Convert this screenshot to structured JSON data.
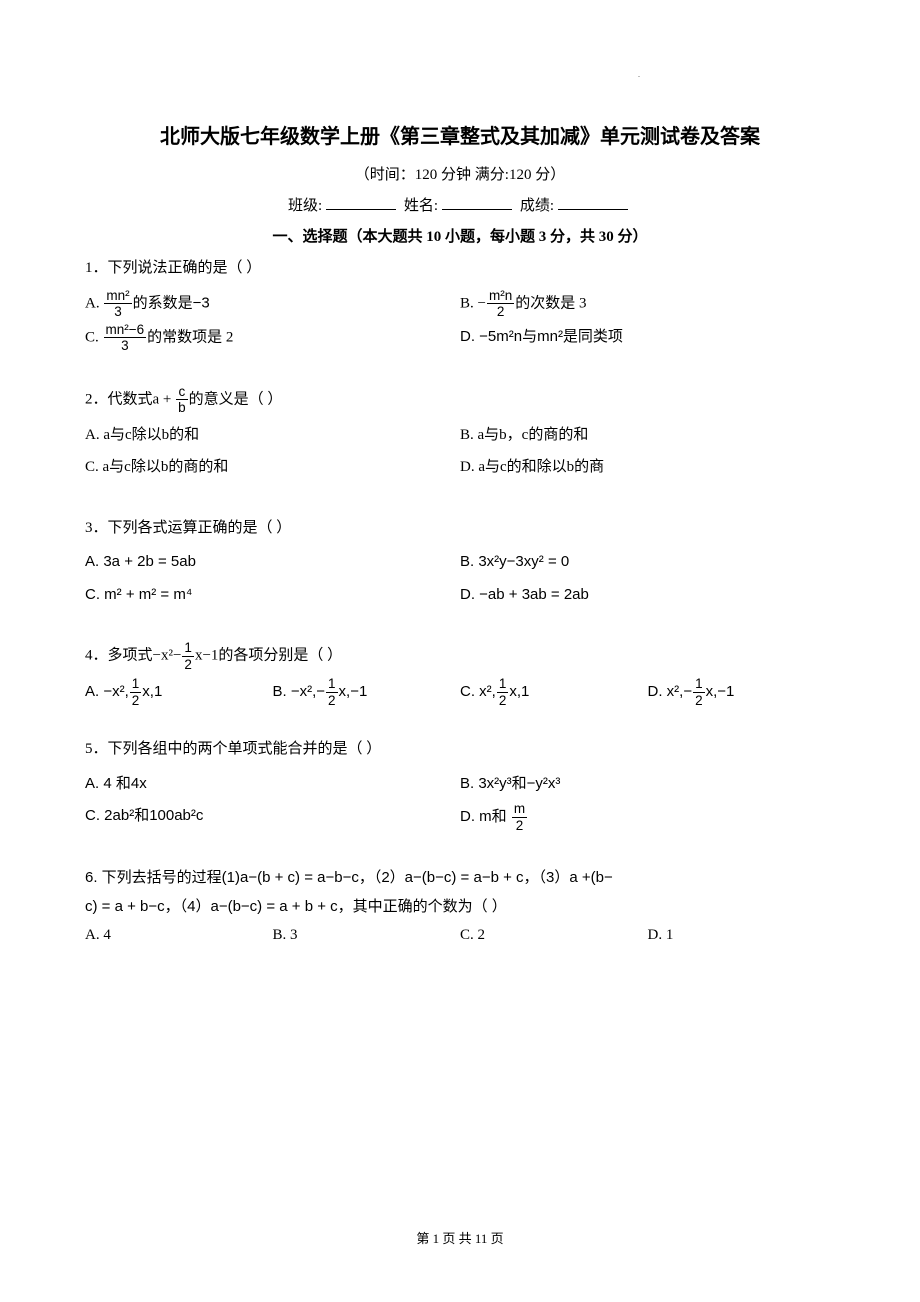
{
  "title": "北师大版七年级数学上册《第三章整式及其加减》单元测试卷及答案",
  "subtitle": "（时间：120 分钟  满分:120 分）",
  "info_labels": {
    "class": "班级:",
    "name": "姓名:",
    "score": "成绩:"
  },
  "section_title": "一、选择题（本大题共 10 小题，每小题 3 分，共 30 分）",
  "questions": {
    "q1": {
      "stem": "1．下列说法正确的是（    ）",
      "a_prefix": "A. ",
      "a_frac_num": "mn²",
      "a_frac_den": "3",
      "a_suffix": "的系数是−3",
      "b_prefix": "B. −",
      "b_frac_num": "m²n",
      "b_frac_den": "2",
      "b_suffix": "的次数是 3",
      "c_prefix": "C. ",
      "c_frac_num": "mn²−6",
      "c_frac_den": "3",
      "c_suffix": "的常数项是 2",
      "d": "D. −5m²n与mn²是同类项"
    },
    "q2": {
      "stem_prefix": "2．代数式a + ",
      "stem_frac_num": "c",
      "stem_frac_den": "b",
      "stem_suffix": "的意义是（    ）",
      "a": "A. a与c除以b的和",
      "b": "B. a与b，c的商的和",
      "c": "C. a与c除以b的商的和",
      "d": "D. a与c的和除以b的商"
    },
    "q3": {
      "stem": "3．下列各式运算正确的是（    ）",
      "a": "A. 3a + 2b = 5ab",
      "b": "B. 3x²y−3xy² = 0",
      "c": "C. m² + m² = m⁴",
      "d": "D. −ab + 3ab = 2ab"
    },
    "q4": {
      "stem_prefix": "4．多项式−x²−",
      "stem_frac_num": "1",
      "stem_frac_den": "2",
      "stem_suffix": "x−1的各项分别是（    ）",
      "a_prefix": "A. −x²,",
      "a_frac_num": "1",
      "a_frac_den": "2",
      "a_suffix": "x,1",
      "b_prefix": "B. −x²,−",
      "b_frac_num": "1",
      "b_frac_den": "2",
      "b_suffix": "x,−1",
      "c_prefix": "C. x²,",
      "c_frac_num": "1",
      "c_frac_den": "2",
      "c_suffix": "x,1",
      "d_prefix": "D. x²,−",
      "d_frac_num": "1",
      "d_frac_den": "2",
      "d_suffix": "x,−1"
    },
    "q5": {
      "stem": "5．下列各组中的两个单项式能合并的是（    ）",
      "a": "A. 4 和4x",
      "b": "B. 3x²y³和−y²x³",
      "c": "C. 2ab²和100ab²c",
      "d_prefix": "D. m和 ",
      "d_frac_num": "m",
      "d_frac_den": "2"
    },
    "q6": {
      "line1": "6. 下列去括号的过程(1)a−(b + c) = a−b−c，（2）a−(b−c) = a−b + c，（3）a +(b−",
      "line2": "c) = a + b−c，（4）a−(b−c) = a + b + c，其中正确的个数为（    ）",
      "a": "A. 4",
      "b": "B. 3",
      "c": "C. 2",
      "d": "D. 1"
    }
  },
  "footer": "第 1 页 共 11 页",
  "mark": "."
}
